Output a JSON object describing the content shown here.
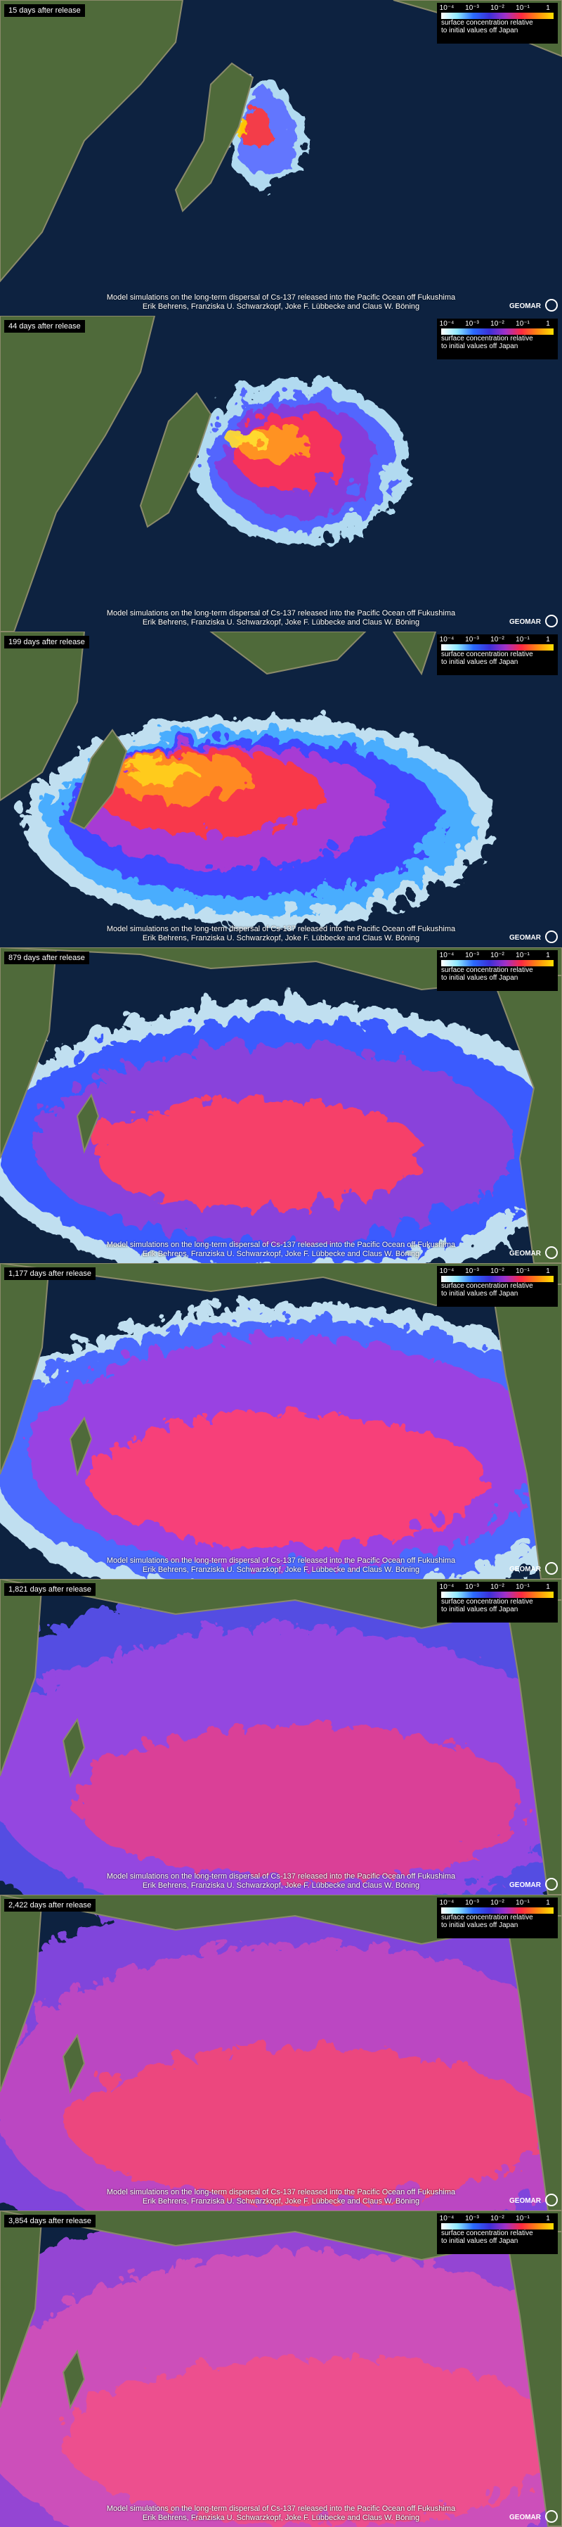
{
  "panels": [
    {
      "label": "15 days after release"
    },
    {
      "label": "44 days after release"
    },
    {
      "label": "199 days after release"
    },
    {
      "label": "879 days after release"
    },
    {
      "label": "1,177 days after release"
    },
    {
      "label": "1,821 days after release"
    },
    {
      "label": "2,422 days after release"
    },
    {
      "label": "3,854 days after release"
    }
  ],
  "legend": {
    "ticks": [
      "10⁻⁴",
      "10⁻³",
      "10⁻²",
      "10⁻¹",
      "1"
    ],
    "text": [
      "surface concentration relative",
      "to initial values off Japan"
    ]
  },
  "caption": {
    "line1": "Model simulations on the long-term dispersal of Cs-137 released into the Pacific Ocean off Fukushima",
    "line2": "Erik Behrens, Franziska U. Schwarzkopf, Joke F. Lübbecke and Claus W. Böning"
  },
  "logo": "GEOMAR"
}
